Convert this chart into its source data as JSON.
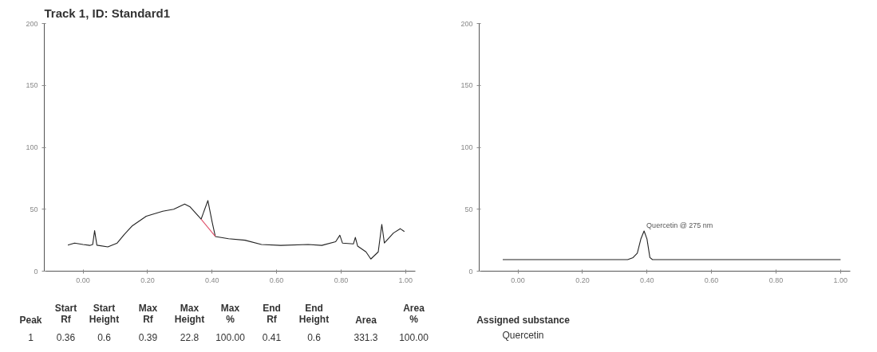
{
  "chart_data": [
    {
      "type": "line",
      "title": "Track 1, ID: Standard1",
      "xlim": [
        -0.12,
        1.03
      ],
      "ylim": [
        0,
        200
      ],
      "xticks": [
        {
          "value": 0,
          "label": "0.00"
        },
        {
          "value": 0.2,
          "label": "0.20"
        },
        {
          "value": 0.4,
          "label": "0.40"
        },
        {
          "value": 0.6,
          "label": "0.60"
        },
        {
          "value": 0.8,
          "label": "0.80"
        },
        {
          "value": 1,
          "label": "1.00"
        }
      ],
      "yticks": [
        0,
        50,
        100,
        150,
        200
      ],
      "grid": false,
      "series": [
        {
          "color": "#222222",
          "x": [
            -0.047,
            -0.026,
            0,
            0.021,
            0.03,
            0.036,
            0.043,
            0.077,
            0.106,
            0.128,
            0.153,
            0.196,
            0.247,
            0.281,
            0.315,
            0.332,
            0.366,
            0.387,
            0.4,
            0.41,
            0.451,
            0.502,
            0.553,
            0.613,
            0.698,
            0.74,
            0.783,
            0.796,
            0.804,
            0.838,
            0.844,
            0.851,
            0.877,
            0.892,
            0.915,
            0.926,
            0.934,
            0.962,
            0.983,
            0.996
          ],
          "values": [
            21,
            22.7,
            21.5,
            20.8,
            21.5,
            32.7,
            21,
            19.6,
            22.7,
            29.7,
            36.7,
            44.4,
            48.4,
            50,
            54.2,
            51.9,
            42,
            57,
            40,
            28,
            26.2,
            25,
            21.5,
            20.8,
            21.5,
            20.8,
            23.8,
            29,
            22.7,
            22,
            27.3,
            20.3,
            15.6,
            9.8,
            15.6,
            37.8,
            22.7,
            30.8,
            34.3,
            32
          ]
        },
        {
          "color": "#e0506a",
          "x": [
            0.366,
            0.41
          ],
          "values": [
            42,
            28
          ]
        }
      ]
    },
    {
      "type": "line",
      "xlim": [
        -0.12,
        1.03
      ],
      "ylim": [
        0,
        200
      ],
      "xticks": [
        {
          "value": 0,
          "label": "0.00"
        },
        {
          "value": 0.2,
          "label": "0.20"
        },
        {
          "value": 0.4,
          "label": "0.40"
        },
        {
          "value": 0.6,
          "label": "0.60"
        },
        {
          "value": 0.8,
          "label": "0.80"
        },
        {
          "value": 1,
          "label": "1.00"
        }
      ],
      "yticks": [
        0,
        50,
        100,
        150,
        200
      ],
      "grid": false,
      "annotations": [
        {
          "text": "Quercetin @ 275 nm",
          "x": 0.391,
          "y": 32.5
        }
      ],
      "series": [
        {
          "color": "#222222",
          "x": [
            -0.047,
            0.34,
            0.357,
            0.37,
            0.381,
            0.391,
            0.4,
            0.409,
            0.417,
            1.0
          ],
          "values": [
            9.3,
            9.3,
            11,
            14.5,
            26,
            32.5,
            26,
            11,
            9.3,
            9.3
          ]
        }
      ]
    },
    {
      "type": "other",
      "annotations": [
        "Peak",
        "Start\nRf",
        "Start\nHeight",
        "Max\nRf",
        "Max\nHeight",
        "Max\n%",
        "End\nRf",
        "End\nHeight",
        "Area",
        "Area\n%",
        "Assigned substance",
        "1",
        "0.36",
        "0.6",
        "0.39",
        "22.8",
        "100.00",
        "0.41",
        "0.6",
        "331.3",
        "100.00",
        "Quercetin"
      ]
    }
  ]
}
